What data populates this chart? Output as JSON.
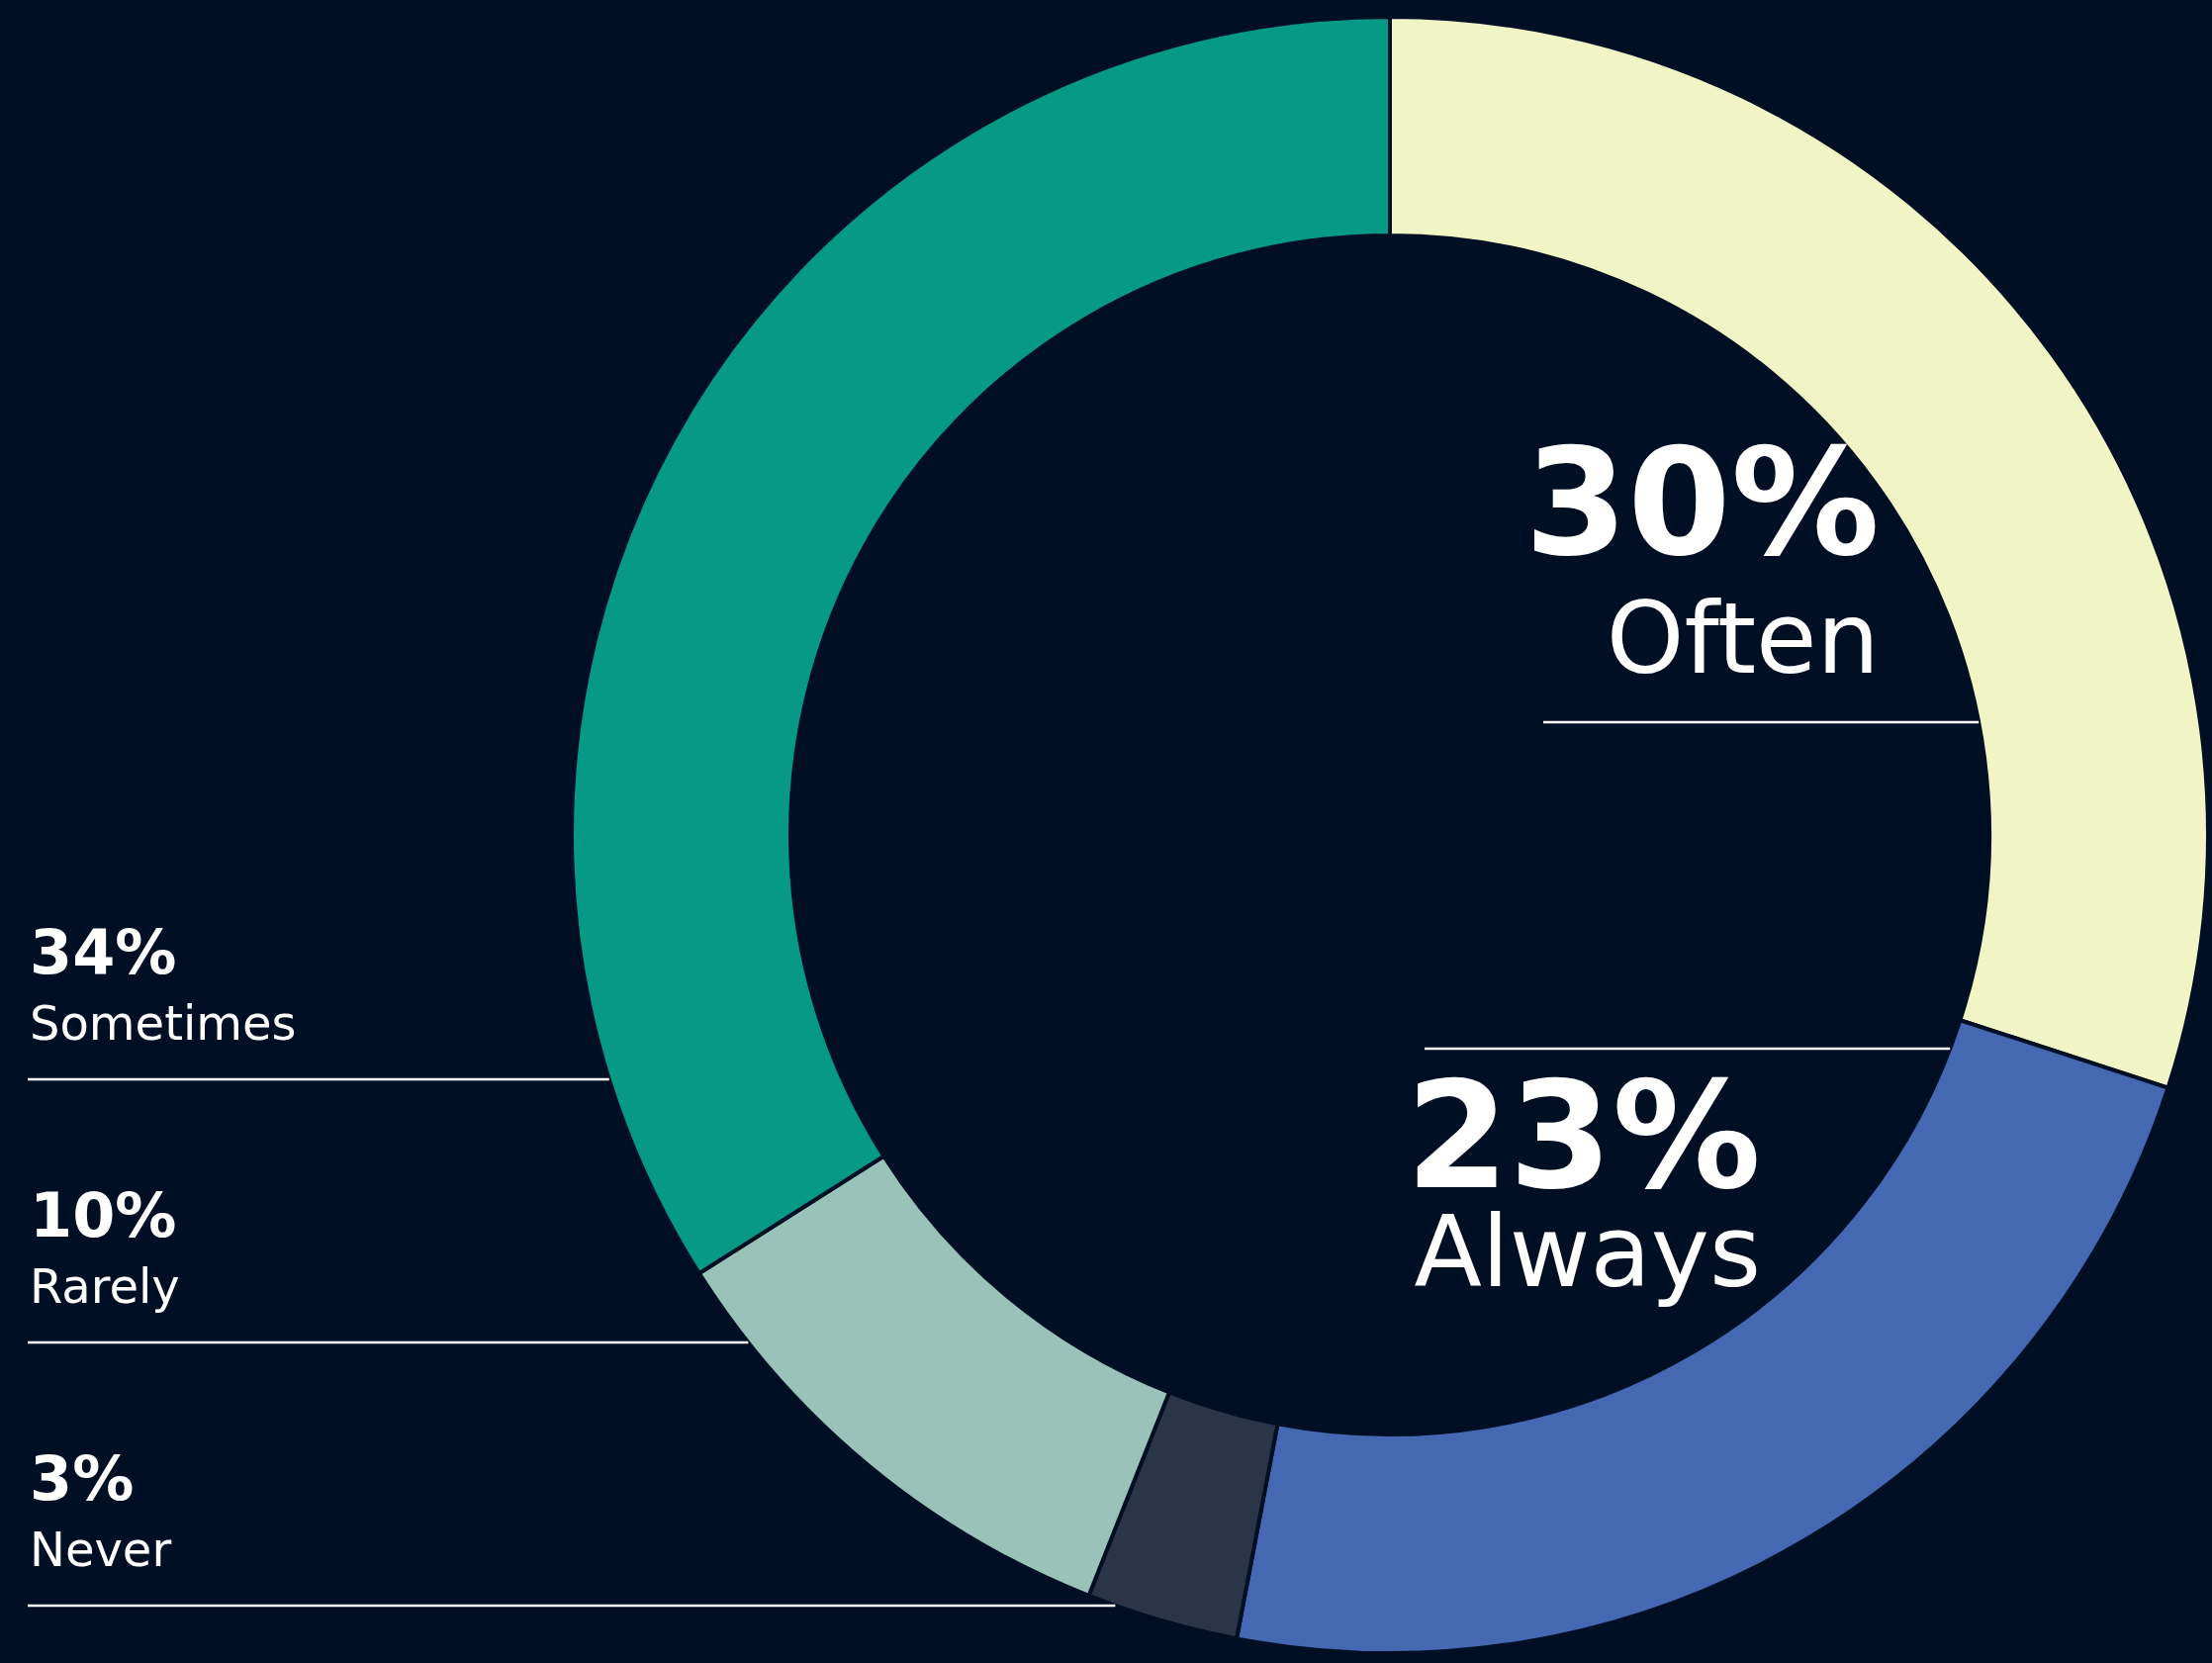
{
  "chart_data": {
    "type": "donut",
    "categories": [
      "Often",
      "Always",
      "Never",
      "Rarely",
      "Sometimes"
    ],
    "values": [
      30,
      23,
      3,
      10,
      34
    ],
    "colors": [
      "#f1f4c4",
      "#4469b2",
      "#2a3648",
      "#99c2b8",
      "#069a86"
    ],
    "value_labels": [
      "30%",
      "23%",
      "3%",
      "10%",
      "34%"
    ]
  }
}
